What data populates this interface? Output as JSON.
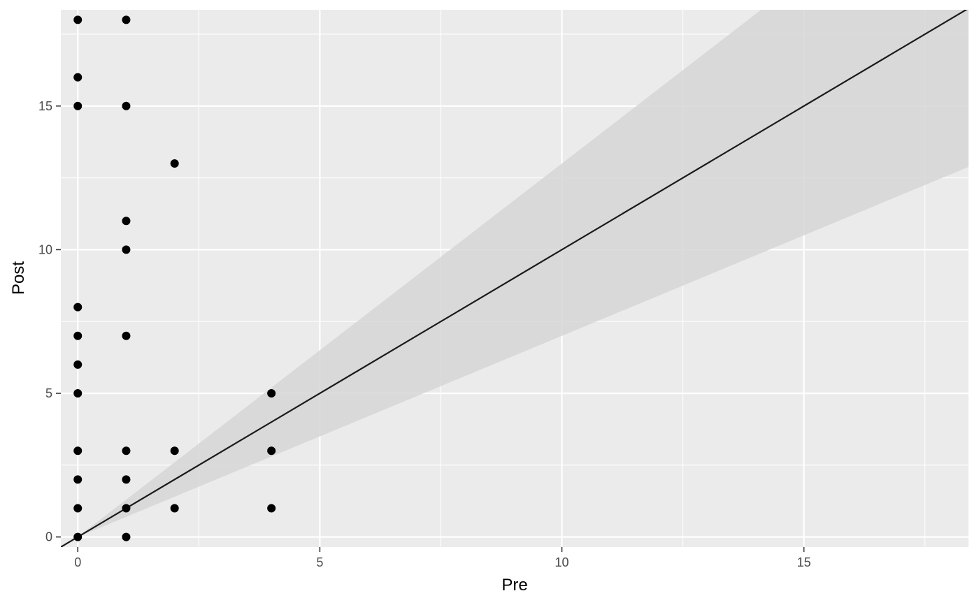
{
  "chart_data": {
    "type": "scatter",
    "title": "",
    "xlabel": "Pre",
    "ylabel": "Post",
    "xlim": [
      -0.35,
      18.4
    ],
    "ylim": [
      -0.35,
      18.35
    ],
    "x_ticks": [
      0,
      5,
      10,
      15
    ],
    "x_tick_labels": [
      "0",
      "5",
      "10",
      "15"
    ],
    "y_ticks": [
      0,
      5,
      10,
      15
    ],
    "y_tick_labels": [
      "0",
      "5",
      "10",
      "15"
    ],
    "grid": true,
    "colors": {
      "panel_background": "#ebebeb",
      "grid_line": "#ffffff",
      "ribbon": "#d6d6d6",
      "points": "#000000",
      "reference_line": "#1a1a1a"
    },
    "points": [
      {
        "x": 0,
        "y": 18
      },
      {
        "x": 1,
        "y": 18
      },
      {
        "x": 0,
        "y": 16
      },
      {
        "x": 0,
        "y": 15
      },
      {
        "x": 1,
        "y": 15
      },
      {
        "x": 2,
        "y": 13
      },
      {
        "x": 1,
        "y": 11
      },
      {
        "x": 1,
        "y": 10
      },
      {
        "x": 0,
        "y": 8
      },
      {
        "x": 0,
        "y": 7
      },
      {
        "x": 1,
        "y": 7
      },
      {
        "x": 0,
        "y": 6
      },
      {
        "x": 0,
        "y": 5
      },
      {
        "x": 4,
        "y": 5
      },
      {
        "x": 0,
        "y": 3
      },
      {
        "x": 1,
        "y": 3
      },
      {
        "x": 2,
        "y": 3
      },
      {
        "x": 4,
        "y": 3
      },
      {
        "x": 0,
        "y": 2
      },
      {
        "x": 1,
        "y": 2
      },
      {
        "x": 0,
        "y": 1
      },
      {
        "x": 1,
        "y": 1
      },
      {
        "x": 2,
        "y": 1
      },
      {
        "x": 4,
        "y": 1
      },
      {
        "x": 0,
        "y": 0
      },
      {
        "x": 1,
        "y": 0
      }
    ],
    "reference_line": {
      "slope": 1,
      "intercept": 0
    },
    "ribbon": {
      "upper_slope": 1.3,
      "lower_slope": 0.7
    }
  }
}
